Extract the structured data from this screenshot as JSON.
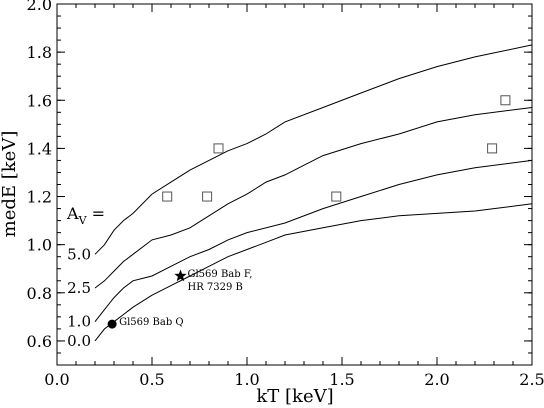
{
  "chart_data": {
    "type": "line",
    "xlabel": "kT [keV]",
    "ylabel": "medE [keV]",
    "xlim": [
      0.0,
      2.5
    ],
    "ylim": [
      0.5,
      2.0
    ],
    "x_ticks": [
      "0.0",
      "0.5",
      "1.0",
      "1.5",
      "2.0",
      "2.5"
    ],
    "y_ticks": [
      "0.6",
      "0.8",
      "1.0",
      "1.2",
      "1.4",
      "1.6",
      "1.8",
      "2.0"
    ],
    "x_tick_values": [
      0.0,
      0.5,
      1.0,
      1.5,
      2.0,
      2.5
    ],
    "y_tick_values": [
      0.6,
      0.8,
      1.0,
      1.2,
      1.4,
      1.6,
      1.8,
      2.0
    ],
    "grid": false,
    "av_legend_label": "A",
    "av_legend_sub": "V",
    "av_legend_eq": " =",
    "series": [
      {
        "label": "0.0",
        "points": [
          [
            0.2,
            0.6
          ],
          [
            0.25,
            0.65
          ],
          [
            0.3,
            0.68
          ],
          [
            0.35,
            0.71
          ],
          [
            0.4,
            0.74
          ],
          [
            0.5,
            0.79
          ],
          [
            0.6,
            0.83
          ],
          [
            0.7,
            0.87
          ],
          [
            0.8,
            0.91
          ],
          [
            0.9,
            0.95
          ],
          [
            1.0,
            0.98
          ],
          [
            1.1,
            1.01
          ],
          [
            1.2,
            1.04
          ],
          [
            1.4,
            1.07
          ],
          [
            1.6,
            1.1
          ],
          [
            1.8,
            1.12
          ],
          [
            2.0,
            1.13
          ],
          [
            2.2,
            1.14
          ],
          [
            2.5,
            1.17
          ]
        ]
      },
      {
        "label": "1.0",
        "points": [
          [
            0.2,
            0.68
          ],
          [
            0.25,
            0.73
          ],
          [
            0.3,
            0.78
          ],
          [
            0.35,
            0.82
          ],
          [
            0.4,
            0.85
          ],
          [
            0.45,
            0.86
          ],
          [
            0.5,
            0.87
          ],
          [
            0.6,
            0.91
          ],
          [
            0.7,
            0.95
          ],
          [
            0.8,
            0.98
          ],
          [
            0.9,
            1.02
          ],
          [
            1.0,
            1.05
          ],
          [
            1.2,
            1.09
          ],
          [
            1.4,
            1.15
          ],
          [
            1.6,
            1.2
          ],
          [
            1.8,
            1.25
          ],
          [
            2.0,
            1.29
          ],
          [
            2.2,
            1.32
          ],
          [
            2.5,
            1.35
          ]
        ]
      },
      {
        "label": "2.5",
        "points": [
          [
            0.2,
            0.82
          ],
          [
            0.25,
            0.85
          ],
          [
            0.3,
            0.89
          ],
          [
            0.35,
            0.93
          ],
          [
            0.4,
            0.96
          ],
          [
            0.5,
            1.02
          ],
          [
            0.6,
            1.04
          ],
          [
            0.7,
            1.07
          ],
          [
            0.8,
            1.12
          ],
          [
            0.9,
            1.17
          ],
          [
            1.0,
            1.21
          ],
          [
            1.1,
            1.26
          ],
          [
            1.2,
            1.29
          ],
          [
            1.3,
            1.33
          ],
          [
            1.4,
            1.37
          ],
          [
            1.6,
            1.42
          ],
          [
            1.8,
            1.46
          ],
          [
            2.0,
            1.51
          ],
          [
            2.2,
            1.54
          ],
          [
            2.5,
            1.57
          ]
        ]
      },
      {
        "label": "5.0",
        "points": [
          [
            0.2,
            0.96
          ],
          [
            0.25,
            1.0
          ],
          [
            0.3,
            1.06
          ],
          [
            0.35,
            1.1
          ],
          [
            0.4,
            1.13
          ],
          [
            0.5,
            1.21
          ],
          [
            0.6,
            1.26
          ],
          [
            0.7,
            1.31
          ],
          [
            0.8,
            1.35
          ],
          [
            0.9,
            1.39
          ],
          [
            1.0,
            1.42
          ],
          [
            1.1,
            1.46
          ],
          [
            1.2,
            1.51
          ],
          [
            1.4,
            1.57
          ],
          [
            1.6,
            1.63
          ],
          [
            1.8,
            1.69
          ],
          [
            2.0,
            1.74
          ],
          [
            2.2,
            1.78
          ],
          [
            2.5,
            1.83
          ]
        ]
      }
    ],
    "open_squares": [
      [
        0.58,
        1.2
      ],
      [
        0.79,
        1.2
      ],
      [
        0.85,
        1.4
      ],
      [
        1.47,
        1.2
      ],
      [
        2.29,
        1.4
      ],
      [
        2.36,
        1.6
      ]
    ],
    "labeled_points": [
      {
        "marker": "circle",
        "x": 0.29,
        "y": 0.67,
        "label": "Gl569 Bab Q"
      },
      {
        "marker": "star",
        "x": 0.65,
        "y": 0.87,
        "label": "Gl569 Bab F,",
        "label2": "HR 7329 B"
      }
    ]
  }
}
